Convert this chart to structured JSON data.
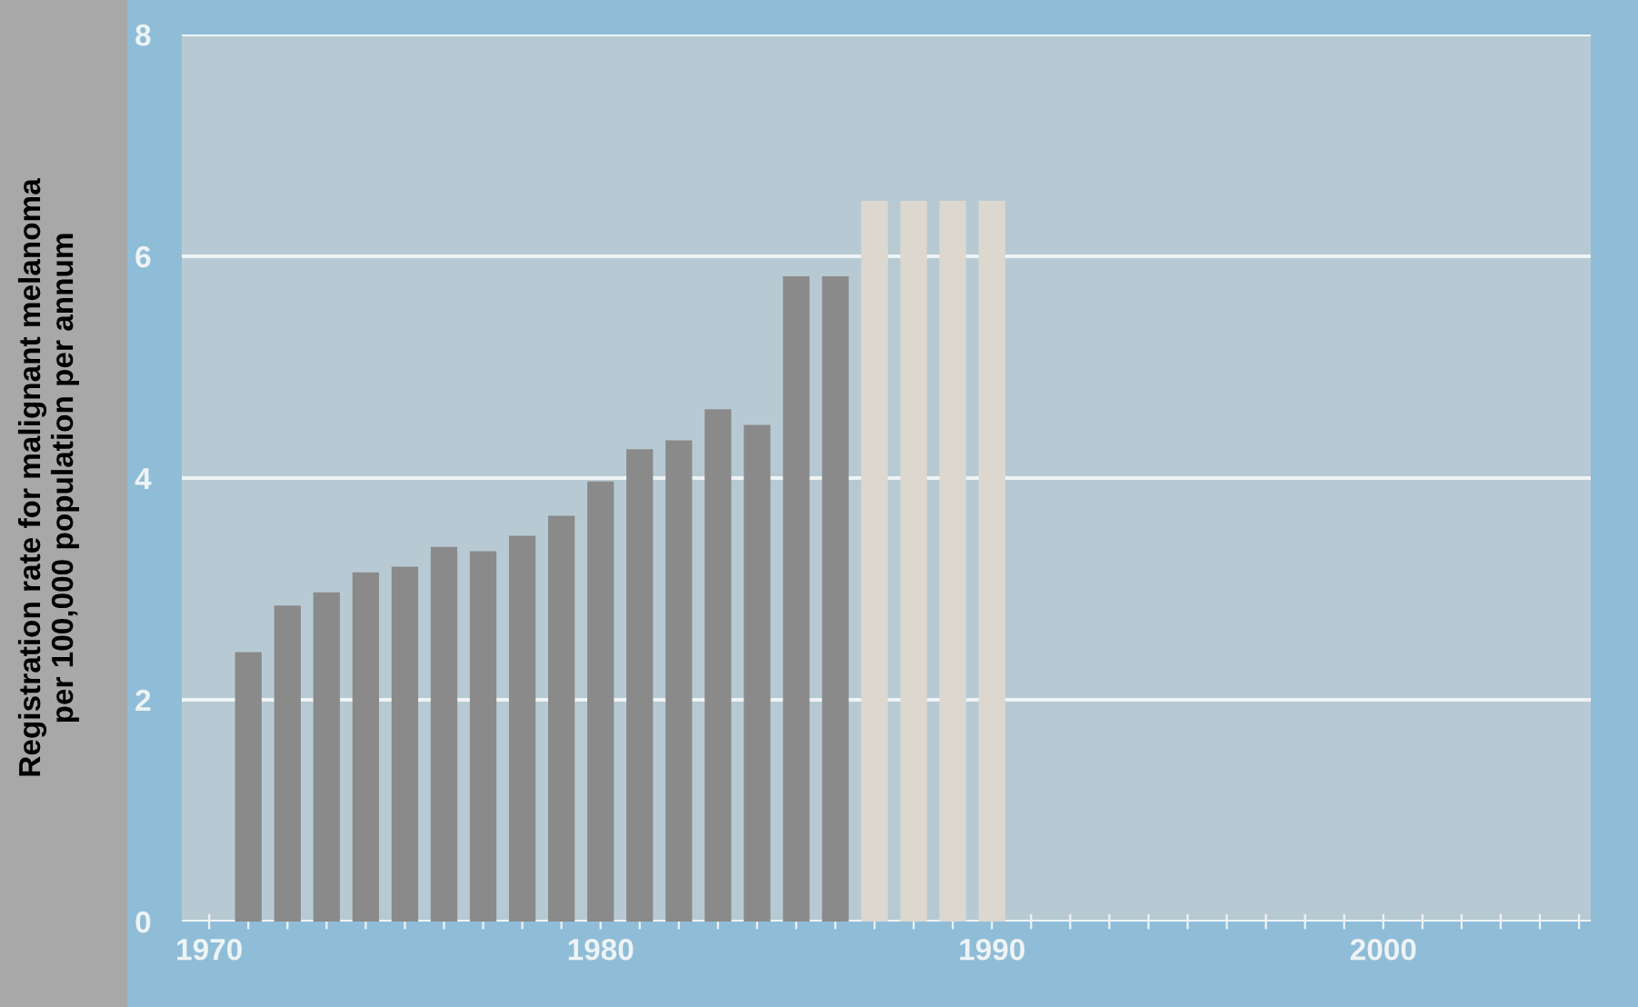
{
  "chart_data": {
    "type": "bar",
    "ylabel": "Registration rate for malignant melanoma\nper 100,000 population per annum",
    "x": [
      1971,
      1972,
      1973,
      1974,
      1975,
      1976,
      1977,
      1978,
      1979,
      1980,
      1981,
      1982,
      1983,
      1984,
      1985,
      1986,
      1987,
      1988,
      1989,
      1990
    ],
    "values": [
      2.43,
      2.85,
      2.97,
      3.15,
      3.2,
      3.38,
      3.34,
      3.48,
      3.66,
      3.97,
      4.26,
      4.34,
      4.62,
      4.48,
      5.82,
      5.82,
      6.5,
      6.5,
      6.5,
      6.5
    ],
    "colors": [
      "#8a8a8a",
      "#8a8a8a",
      "#8a8a8a",
      "#8a8a8a",
      "#8a8a8a",
      "#8a8a8a",
      "#8a8a8a",
      "#8a8a8a",
      "#8a8a8a",
      "#8a8a8a",
      "#8a8a8a",
      "#8a8a8a",
      "#8a8a8a",
      "#8a8a8a",
      "#8a8a8a",
      "#8a8a8a",
      "#dcd8cf",
      "#dcd8cf",
      "#dcd8cf",
      "#dcd8cf"
    ],
    "xlim": [
      1969.3,
      2005.3
    ],
    "xticks": [
      1970,
      {
        "value": 1971,
        "label": null
      },
      {
        "value": 1972,
        "label": null
      },
      {
        "value": 1973,
        "label": null
      },
      {
        "value": 1974,
        "label": null
      },
      {
        "value": 1975,
        "label": null
      },
      {
        "value": 1976,
        "label": null
      },
      {
        "value": 1977,
        "label": null
      },
      {
        "value": 1978,
        "label": null
      },
      {
        "value": 1979,
        "label": null
      },
      1980,
      {
        "value": 1981,
        "label": null
      },
      {
        "value": 1982,
        "label": null
      },
      {
        "value": 1983,
        "label": null
      },
      {
        "value": 1984,
        "label": null
      },
      {
        "value": 1985,
        "label": null
      },
      {
        "value": 1986,
        "label": null
      },
      {
        "value": 1987,
        "label": null
      },
      {
        "value": 1988,
        "label": null
      },
      {
        "value": 1989,
        "label": null
      },
      1990,
      {
        "value": 1991,
        "label": null
      },
      {
        "value": 1992,
        "label": null
      },
      {
        "value": 1993,
        "label": null
      },
      {
        "value": 1994,
        "label": null
      },
      {
        "value": 1995,
        "label": null
      },
      {
        "value": 1996,
        "label": null
      },
      {
        "value": 1997,
        "label": null
      },
      {
        "value": 1998,
        "label": null
      },
      {
        "value": 1999,
        "label": null
      },
      2000,
      {
        "value": 2001,
        "label": null
      },
      {
        "value": 2002,
        "label": null
      },
      {
        "value": 2003,
        "label": null
      },
      {
        "value": 2004,
        "label": null
      },
      {
        "value": 2005,
        "label": null
      }
    ],
    "ylim": [
      0,
      8
    ],
    "yticks": [
      0,
      2,
      4,
      6,
      8
    ],
    "grid": "y"
  }
}
